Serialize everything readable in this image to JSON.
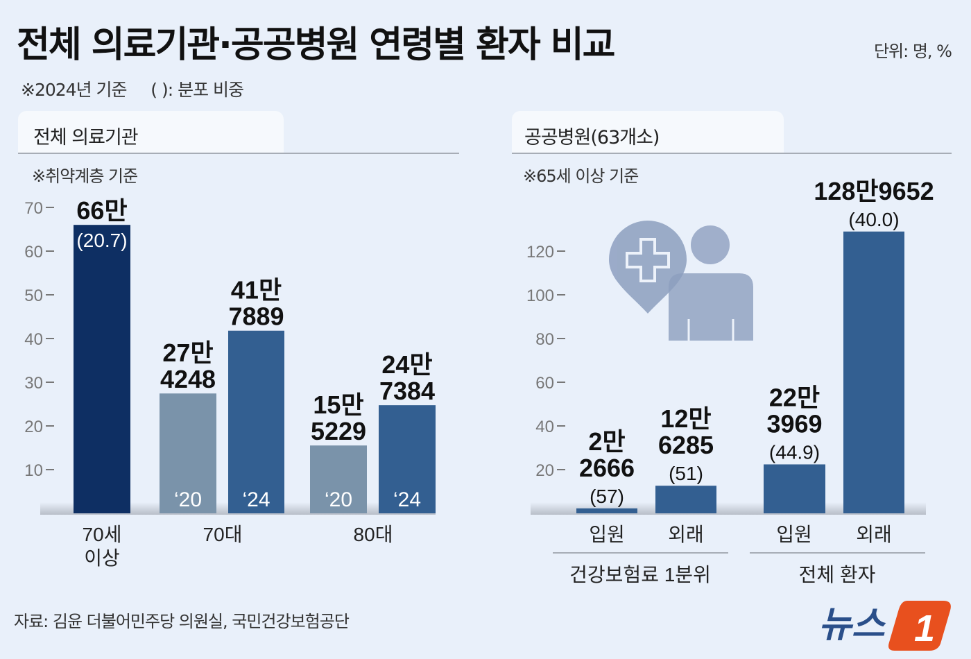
{
  "header": {
    "title": "전체 의료기관·공공병원 연령별 환자 비교",
    "unit": "단위: 명, %",
    "note": "※2024년 기준     ( ): 분포 비중"
  },
  "footer": {
    "source": "자료: 김윤 더불어민주당 의원실, 국민건강보험공단",
    "logo_text": "뉴스1"
  },
  "colors": {
    "background": "#e9f0fa",
    "dark_navy": "#0e2f63",
    "grey_blue": "#7a93aa",
    "mid_blue": "#335f91",
    "icon": "#8d9fbf"
  },
  "icons": [
    "hospital-location-pin-icon",
    "person-icon"
  ],
  "chart_data": [
    {
      "type": "bar",
      "title": "전체 의료기관",
      "subtitle": "※취약계층 기준",
      "ylim": [
        0,
        70
      ],
      "yticks": [
        10,
        20,
        30,
        40,
        50,
        60,
        70
      ],
      "categories": [
        "70세\n이상",
        "70대",
        "80대"
      ],
      "bars": [
        {
          "category": "70세 이상",
          "value": 66,
          "label": [
            "66만"
          ],
          "inner": "(20.7)",
          "color": "#0e2f63"
        },
        {
          "category": "70대",
          "series": "'20",
          "value": 27.4248,
          "label": [
            "27만",
            "4248"
          ],
          "inner": "‘20",
          "color": "#7a93aa"
        },
        {
          "category": "70대",
          "series": "'24",
          "value": 41.7889,
          "label": [
            "41만",
            "7889"
          ],
          "inner": "‘24",
          "color": "#335f91"
        },
        {
          "category": "80대",
          "series": "'20",
          "value": 15.5229,
          "label": [
            "15만",
            "5229"
          ],
          "inner": "‘20",
          "color": "#7a93aa"
        },
        {
          "category": "80대",
          "series": "'24",
          "value": 24.7384,
          "label": [
            "24만",
            "7384"
          ],
          "inner": "‘24",
          "color": "#335f91"
        }
      ]
    },
    {
      "type": "bar",
      "title": "공공병원(63개소)",
      "subtitle": "※65세 이상 기준",
      "ylim": [
        0,
        130
      ],
      "yticks": [
        20,
        40,
        60,
        80,
        100,
        120
      ],
      "categories": [
        "입원",
        "외래",
        "입원",
        "외래"
      ],
      "groups": [
        "건강보험료 1분위",
        "전체 환자"
      ],
      "bars": [
        {
          "group": "건강보험료 1분위",
          "category": "입원",
          "value": 2.2666,
          "label": [
            "2만",
            "2666",
            "(57)"
          ],
          "color": "#335f91"
        },
        {
          "group": "건강보험료 1분위",
          "category": "외래",
          "value": 12.6285,
          "label": [
            "12만",
            "6285",
            "(51)"
          ],
          "color": "#335f91"
        },
        {
          "group": "전체 환자",
          "category": "입원",
          "value": 22.3969,
          "label": [
            "22만",
            "3969",
            "(44.9)"
          ],
          "color": "#335f91"
        },
        {
          "group": "전체 환자",
          "category": "외래",
          "value": 128.9652,
          "label": [
            "128만9652",
            "(40.0)"
          ],
          "color": "#335f91"
        }
      ]
    }
  ]
}
